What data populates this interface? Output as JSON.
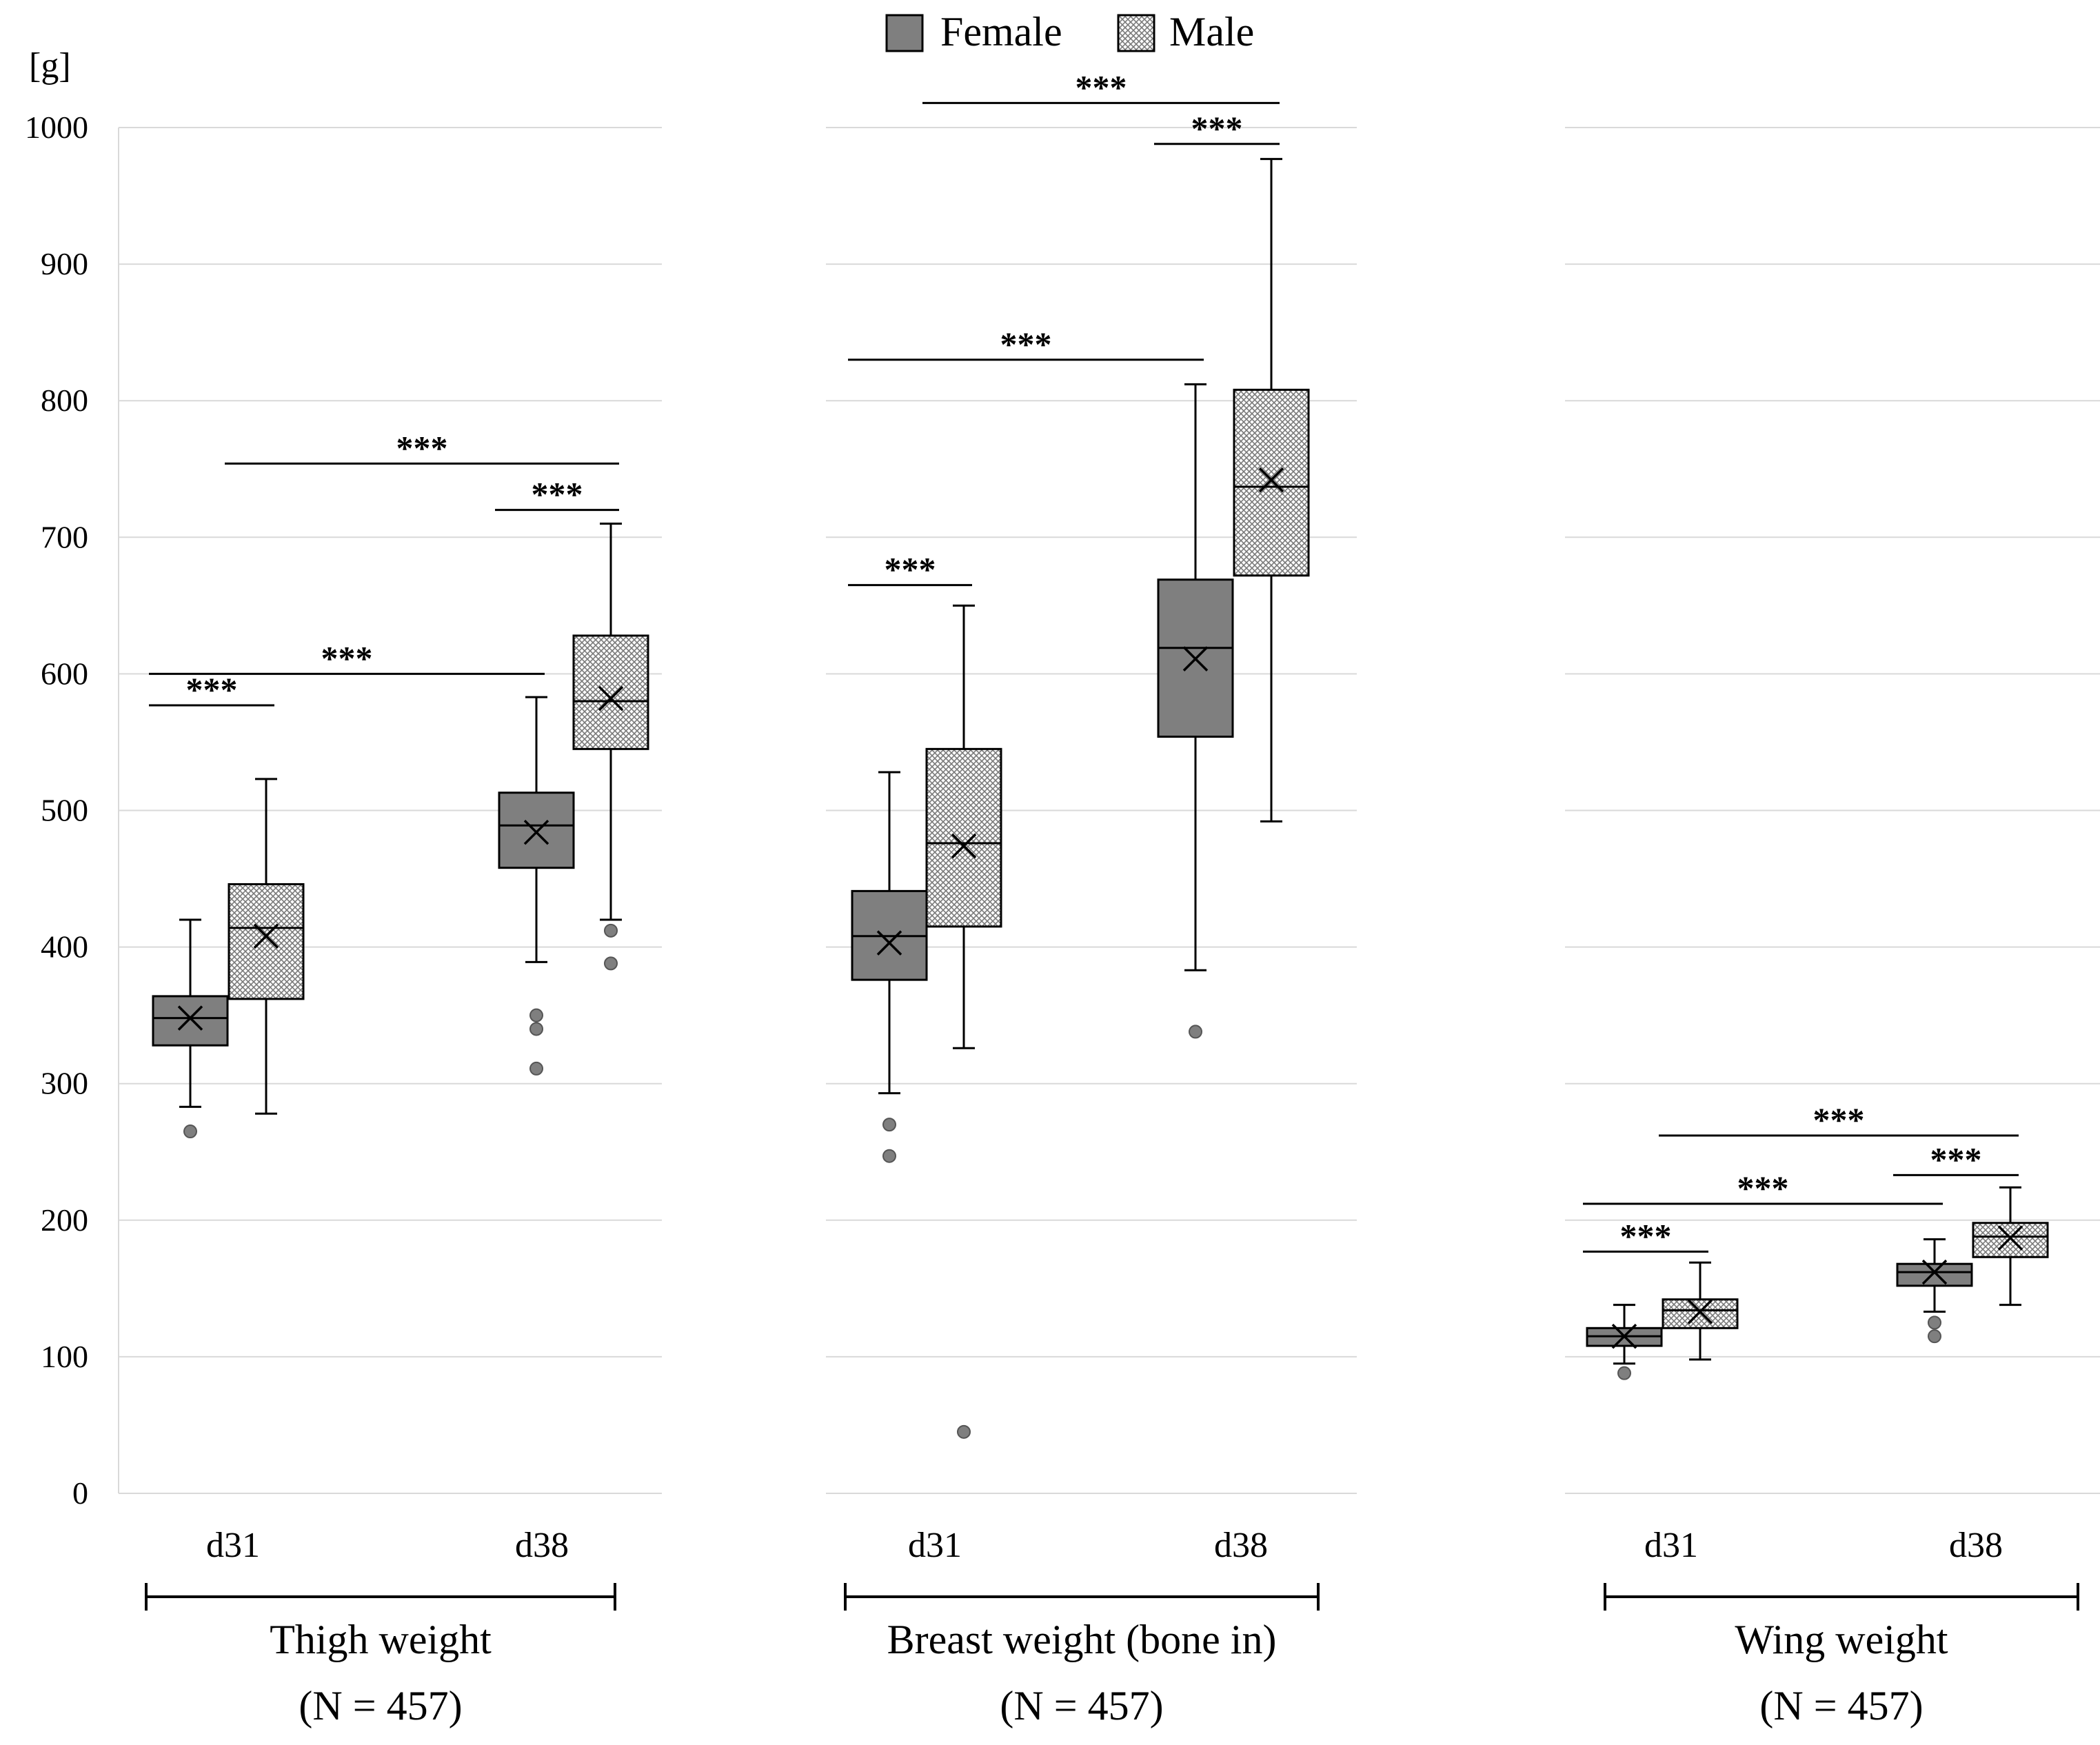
{
  "chart_data": {
    "type": "box",
    "ylabel": "[g]",
    "ylim": [
      0,
      1000
    ],
    "yticks": [
      0,
      100,
      200,
      300,
      400,
      500,
      600,
      700,
      800,
      900,
      1000
    ],
    "grid": true,
    "legend": {
      "placement": "top-center",
      "entries": [
        {
          "name": "Female",
          "fill": "#7f7f7f"
        },
        {
          "name": "Male",
          "fill": "crosshatch"
        }
      ]
    },
    "colors": {
      "female": "#7f7f7f",
      "male_pattern": "#7a7a7a",
      "grid": "#d9d9d9",
      "outlier": "#7f7f7f"
    },
    "significance_label": "***",
    "panels": [
      {
        "name": "Thigh weight",
        "n_label": "(N = 457)",
        "categories": [
          "d31",
          "d38"
        ],
        "series": [
          {
            "name": "Female",
            "boxes": [
              {
                "category": "d31",
                "min": 283,
                "q1": 328,
                "median": 348,
                "q3": 364,
                "max": 420,
                "mean": 348,
                "outliers": [
                  265
                ]
              },
              {
                "category": "d38",
                "min": 389,
                "q1": 458,
                "median": 489,
                "q3": 513,
                "max": 583,
                "mean": 484,
                "outliers": [
                  350,
                  340,
                  311
                ]
              }
            ]
          },
          {
            "name": "Male",
            "boxes": [
              {
                "category": "d31",
                "min": 278,
                "q1": 362,
                "median": 414,
                "q3": 446,
                "max": 523,
                "mean": 408,
                "outliers": []
              },
              {
                "category": "d38",
                "min": 420,
                "q1": 545,
                "median": 580,
                "q3": 628,
                "max": 710,
                "mean": 582,
                "outliers": [
                  412,
                  388
                ]
              }
            ]
          }
        ],
        "significance": [
          {
            "from": "Female d31",
            "to": "Male d31",
            "level": 577
          },
          {
            "from": "Female d31",
            "to": "Female d38",
            "level": 600
          },
          {
            "from": "Male d38",
            "to": "Female d38",
            "level": 720
          },
          {
            "from": "Male d31",
            "to": "Male d38",
            "level": 754
          }
        ]
      },
      {
        "name": "Breast weight (bone in)",
        "n_label": "(N = 457)",
        "categories": [
          "d31",
          "d38"
        ],
        "series": [
          {
            "name": "Female",
            "boxes": [
              {
                "category": "d31",
                "min": 293,
                "q1": 376,
                "median": 408,
                "q3": 441,
                "max": 528,
                "mean": 403,
                "outliers": [
                  270,
                  247
                ]
              },
              {
                "category": "d38",
                "min": 383,
                "q1": 554,
                "median": 619,
                "q3": 669,
                "max": 812,
                "mean": 611,
                "outliers": [
                  338
                ]
              }
            ]
          },
          {
            "name": "Male",
            "boxes": [
              {
                "category": "d31",
                "min": 326,
                "q1": 415,
                "median": 476,
                "q3": 545,
                "max": 650,
                "mean": 474,
                "outliers": [
                  45
                ]
              },
              {
                "category": "d38",
                "min": 492,
                "q1": 672,
                "median": 737,
                "q3": 808,
                "max": 977,
                "mean": 742,
                "outliers": []
              }
            ]
          }
        ],
        "significance": [
          {
            "from": "Female d31",
            "to": "Male d31",
            "level": 665
          },
          {
            "from": "Female d31",
            "to": "Female d38",
            "level": 830
          },
          {
            "from": "Female d38",
            "to": "Male d38",
            "level": 988
          },
          {
            "from": "Male d31",
            "to": "Male d38",
            "level": 1018
          }
        ]
      },
      {
        "name": "Wing weight",
        "n_label": "(N = 457)",
        "categories": [
          "d31",
          "d38"
        ],
        "series": [
          {
            "name": "Female",
            "boxes": [
              {
                "category": "d31",
                "min": 95,
                "q1": 108,
                "median": 115,
                "q3": 121,
                "max": 138,
                "mean": 115,
                "outliers": [
                  88
                ]
              },
              {
                "category": "d38",
                "min": 133,
                "q1": 152,
                "median": 162,
                "q3": 168,
                "max": 186,
                "mean": 162,
                "outliers": [
                  125,
                  115
                ]
              }
            ]
          },
          {
            "name": "Male",
            "boxes": [
              {
                "category": "d31",
                "min": 98,
                "q1": 121,
                "median": 134,
                "q3": 142,
                "max": 169,
                "mean": 133,
                "outliers": []
              },
              {
                "category": "d38",
                "min": 138,
                "q1": 173,
                "median": 188,
                "q3": 198,
                "max": 224,
                "mean": 187,
                "outliers": []
              }
            ]
          }
        ],
        "significance": [
          {
            "from": "Female d31",
            "to": "Male d31",
            "level": 177
          },
          {
            "from": "Female d31",
            "to": "Female d38",
            "level": 212
          },
          {
            "from": "Female d38",
            "to": "Male d38",
            "level": 233
          },
          {
            "from": "Male d31",
            "to": "Male d38",
            "level": 262
          }
        ]
      }
    ]
  }
}
